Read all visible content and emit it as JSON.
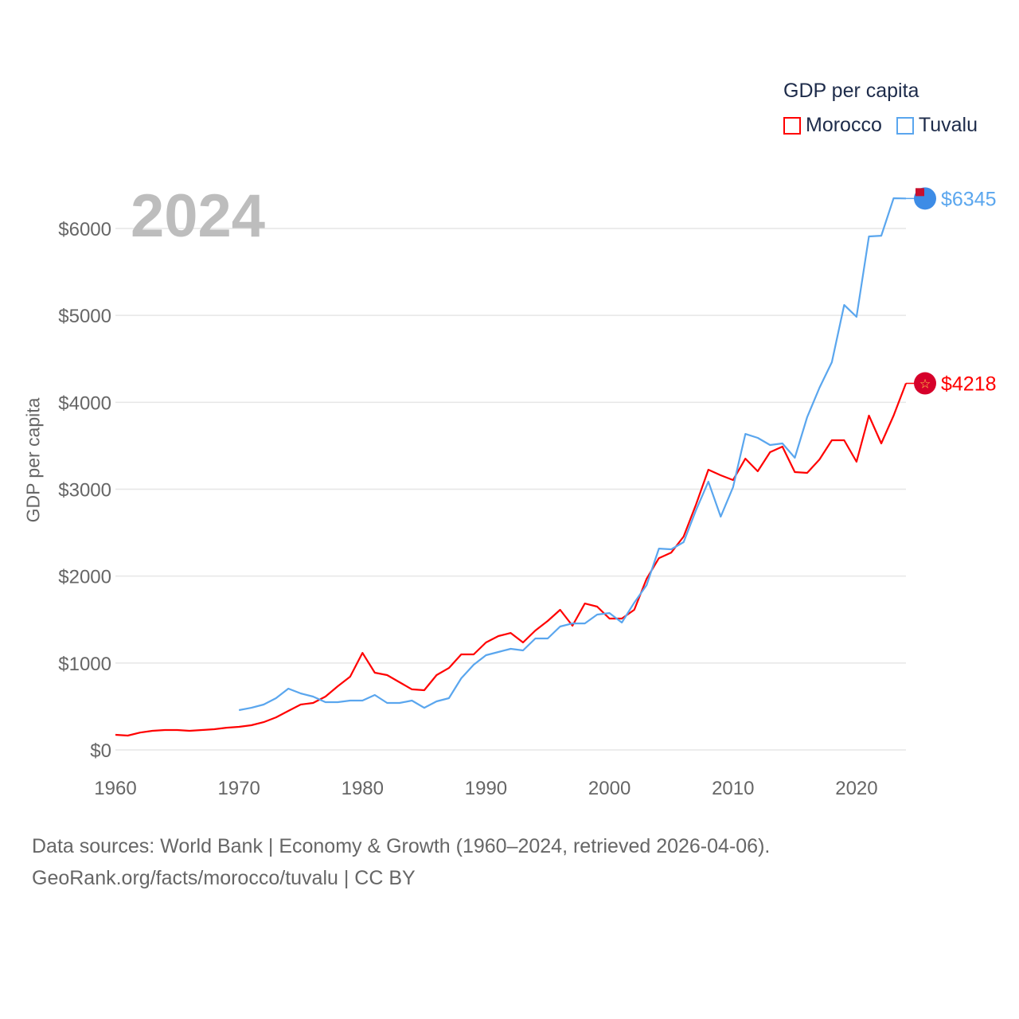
{
  "chart_data": {
    "type": "line",
    "title": "GDP per capita",
    "xlabel": "",
    "ylabel": "GDP per capita",
    "xlim": [
      1960,
      2024
    ],
    "ylim": [
      0,
      6500
    ],
    "grid": true,
    "legend_position": "top-right",
    "x_ticks": [
      "1960",
      "1970",
      "1980",
      "1990",
      "2000",
      "2010",
      "2020"
    ],
    "y_ticks": [
      "$0",
      "$1000",
      "$2000",
      "$3000",
      "$4000",
      "$5000",
      "$6000"
    ],
    "current_year": "2024",
    "series": [
      {
        "name": "Morocco",
        "color": "#ff0000",
        "start_year": 1960,
        "end_label": "$4218",
        "values": [
          174,
          165,
          200,
          220,
          229,
          229,
          220,
          229,
          238,
          256,
          266,
          284,
          320,
          375,
          449,
          522,
          540,
          614,
          733,
          843,
          1117,
          889,
          861,
          779,
          697,
          687,
          861,
          943,
          1099,
          1099,
          1237,
          1310,
          1346,
          1237,
          1374,
          1484,
          1612,
          1429,
          1685,
          1649,
          1511,
          1511,
          1612,
          1969,
          2207,
          2271,
          2455,
          2821,
          3224,
          3160,
          3105,
          3352,
          3206,
          3426,
          3490,
          3197,
          3188,
          3343,
          3563,
          3563,
          3316,
          3847,
          3527,
          3847,
          4218
        ]
      },
      {
        "name": "Tuvalu",
        "color": "#5aa6ee",
        "start_year": 1970,
        "end_label": "$6345",
        "values": [
          458,
          485,
          522,
          595,
          705,
          650,
          614,
          550,
          550,
          568,
          568,
          632,
          540,
          540,
          568,
          485,
          559,
          595,
          824,
          980,
          1090,
          1127,
          1163,
          1145,
          1282,
          1282,
          1420,
          1456,
          1456,
          1557,
          1575,
          1466,
          1694,
          1896,
          2317,
          2308,
          2391,
          2757,
          3087,
          2684,
          3023,
          3636,
          3591,
          3508,
          3527,
          3362,
          3829,
          4168,
          4461,
          5120,
          4983,
          5908,
          5917,
          6348,
          6345
        ]
      }
    ]
  },
  "footer": {
    "line1": "Data sources: World Bank | Economy & Growth (1960–2024, retrieved 2026-04-06).",
    "line2": "GeoRank.org/facts/morocco/tuvalu | CC BY"
  }
}
